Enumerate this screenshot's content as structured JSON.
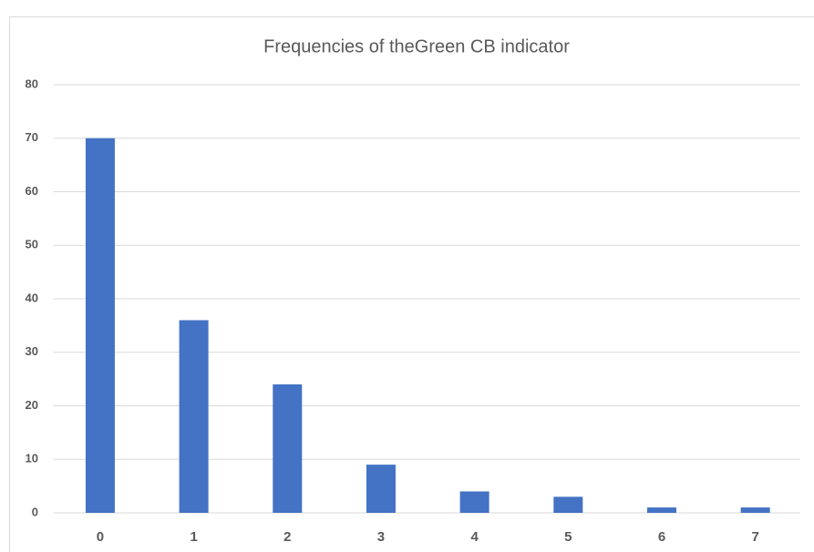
{
  "chart_data": {
    "type": "bar",
    "title": "Frequencies of theGreen CB indicator",
    "categories": [
      "0",
      "1",
      "2",
      "3",
      "4",
      "5",
      "6",
      "7"
    ],
    "values": [
      70,
      36,
      24,
      9,
      4,
      3,
      1,
      1
    ],
    "color": "#4472c4",
    "ylim": [
      0,
      80
    ],
    "yticks": [
      0,
      10,
      20,
      30,
      40,
      50,
      60,
      70,
      80
    ],
    "grid": true
  }
}
